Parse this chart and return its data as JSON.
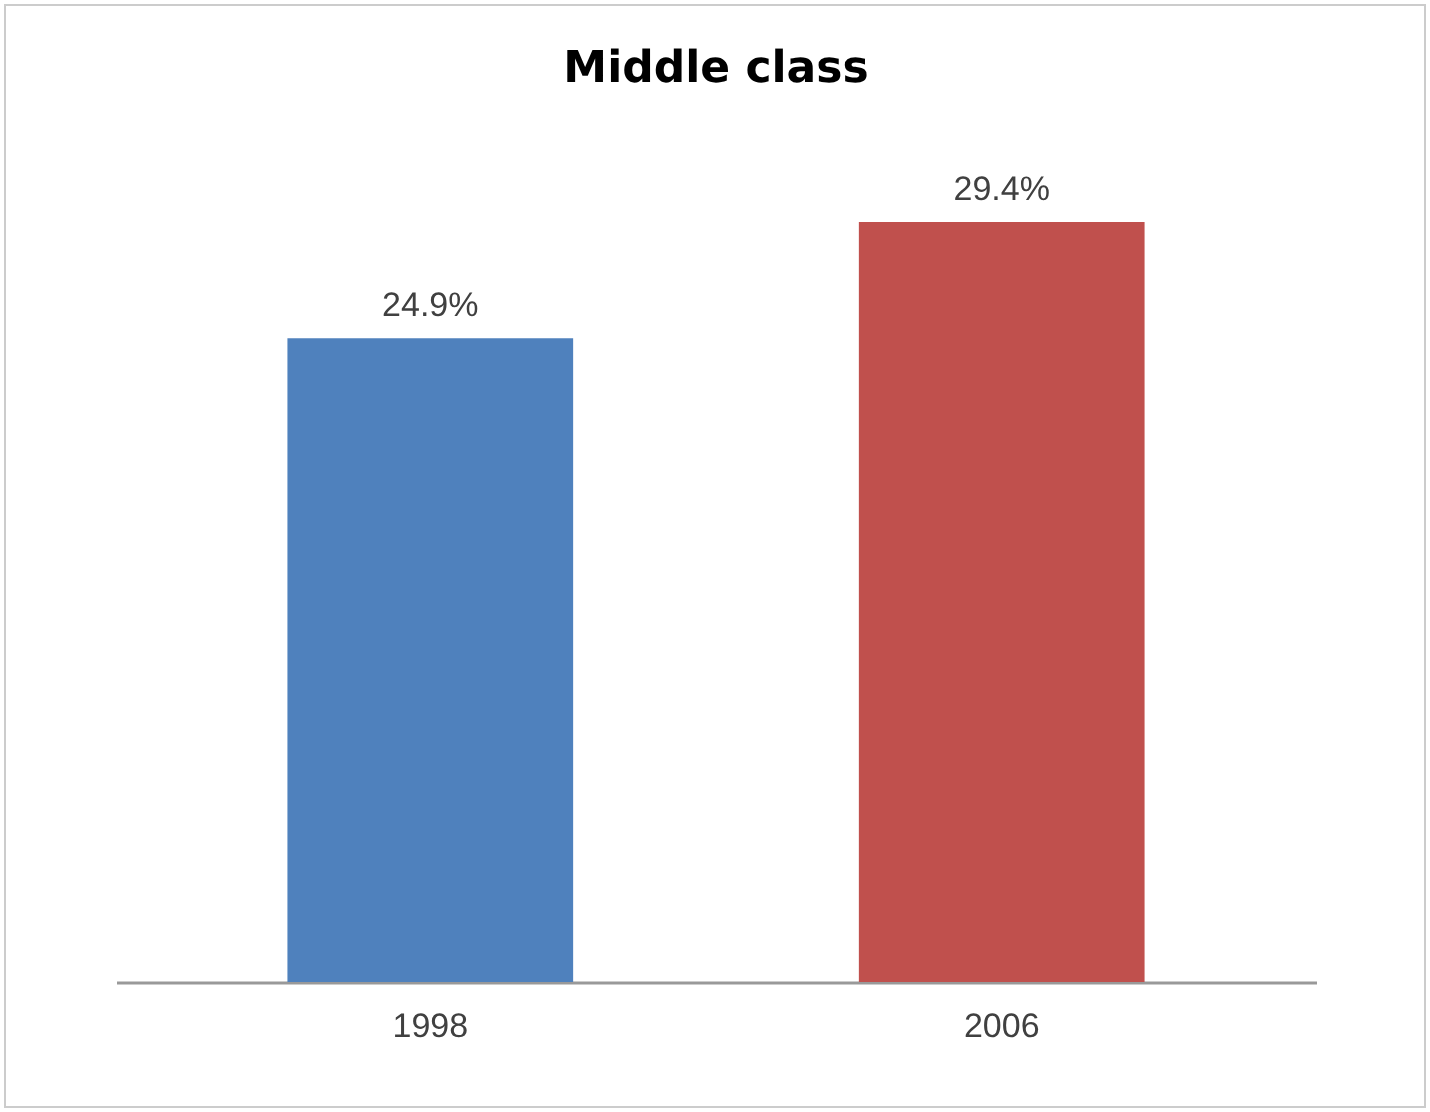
{
  "chart_data": {
    "type": "bar",
    "title": "Middle class",
    "categories": [
      "1998",
      "2006"
    ],
    "values": [
      24.9,
      29.4
    ],
    "colors": [
      "#4f81bd",
      "#c0504d"
    ],
    "value_labels": [
      "24.9%",
      "29.4%"
    ],
    "tick_labels": "x"
  }
}
